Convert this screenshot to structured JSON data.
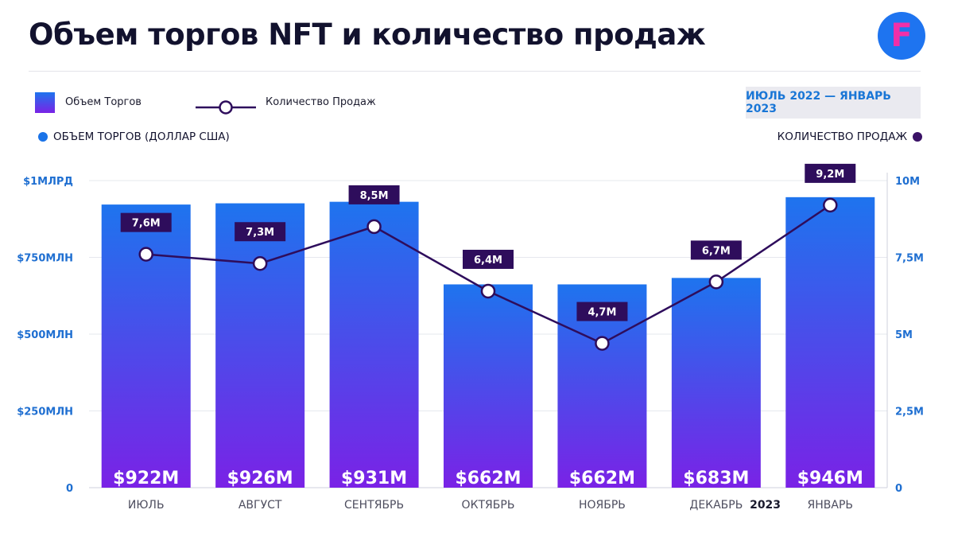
{
  "header": {
    "title": "Объем торгов NFT и количество продаж",
    "logo_letter": "F"
  },
  "legend": {
    "bars_label": "Объем Торгов",
    "line_label": "Количество Продаж"
  },
  "period_badge": "ИЮЛЬ 2022 — ЯНВАРЬ 2023",
  "axes_titles": {
    "left": "ОБЪЕМ ТОРГОВ (ДОЛЛАР США)",
    "right": "КОЛИЧЕСТВО ПРОДАЖ"
  },
  "year_marker": "2023",
  "colors": {
    "bar_top": "#1e74ee",
    "bar_bottom": "#7a22e6",
    "line": "#2e0d5c",
    "label_box": "#2e0d5c",
    "axis_text": "#1f6fd1"
  },
  "chart_data": {
    "type": "bar",
    "categories": [
      "ИЮЛЬ",
      "АВГУСТ",
      "СЕНТЯБРЬ",
      "ОКТЯБРЬ",
      "НОЯБРЬ",
      "ДЕКАБРЬ",
      "ЯНВАРЬ"
    ],
    "series": [
      {
        "name": "Объем Торгов",
        "type": "bar",
        "axis": "left",
        "values": [
          922,
          926,
          931,
          662,
          662,
          683,
          946
        ],
        "labels": [
          "$922M",
          "$926M",
          "$931M",
          "$662M",
          "$662M",
          "$683M",
          "$946M"
        ]
      },
      {
        "name": "Количество Продаж",
        "type": "line",
        "axis": "right",
        "values": [
          7.6,
          7.3,
          8.5,
          6.4,
          4.7,
          6.7,
          9.2
        ],
        "labels": [
          "7,6M",
          "7,3M",
          "8,5M",
          "6,4M",
          "4,7M",
          "6,7M",
          "9,2M"
        ]
      }
    ],
    "left_axis": {
      "ylim": [
        0,
        1000
      ],
      "ticks": [
        0,
        250,
        500,
        750,
        1000
      ],
      "tick_labels": [
        "0",
        "$250МЛН",
        "$500МЛН",
        "$750МЛН",
        "$1МЛРД"
      ]
    },
    "right_axis": {
      "ylim": [
        0,
        10
      ],
      "ticks": [
        0,
        2.5,
        5,
        7.5,
        10
      ],
      "tick_labels": [
        "0",
        "2,5M",
        "5M",
        "7,5M",
        "10M"
      ]
    },
    "grid": true
  }
}
